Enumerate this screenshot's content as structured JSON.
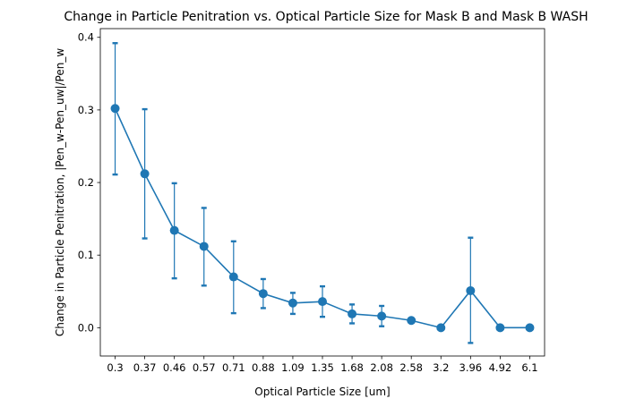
{
  "chart_data": {
    "type": "line",
    "title": "Change in Particle Penitration vs. Optical Particle Size for Mask B and Mask B WASH",
    "xlabel": "Optical Particle Size [um]",
    "ylabel": "Change in Particle Penitration, |Pen_w-Pen_uw|/Pen_w",
    "categories": [
      "0.3",
      "0.37",
      "0.46",
      "0.57",
      "0.71",
      "0.88",
      "1.09",
      "1.35",
      "1.68",
      "2.08",
      "2.58",
      "3.2",
      "3.96",
      "4.92",
      "6.1"
    ],
    "series": [
      {
        "values": [
          0.302,
          0.212,
          0.134,
          0.112,
          0.07,
          0.047,
          0.034,
          0.036,
          0.019,
          0.016,
          0.01,
          0.0,
          0.051,
          0.0,
          0.0
        ],
        "error_lower": [
          0.211,
          0.123,
          0.068,
          0.058,
          0.02,
          0.027,
          0.019,
          0.015,
          0.006,
          0.002,
          0.007,
          0.0,
          -0.021,
          0.0,
          0.0
        ],
        "error_upper": [
          0.392,
          0.301,
          0.199,
          0.165,
          0.119,
          0.067,
          0.048,
          0.057,
          0.032,
          0.03,
          0.013,
          0.0,
          0.124,
          0.0,
          0.0
        ]
      }
    ],
    "yticks": [
      0.0,
      0.1,
      0.2,
      0.3,
      0.4
    ],
    "ytick_labels": [
      "0.0",
      "0.1",
      "0.2",
      "0.3",
      "0.4"
    ],
    "ylim": [
      -0.039,
      0.412
    ],
    "grid": false,
    "colors": {
      "series": "#1f77b4"
    }
  }
}
